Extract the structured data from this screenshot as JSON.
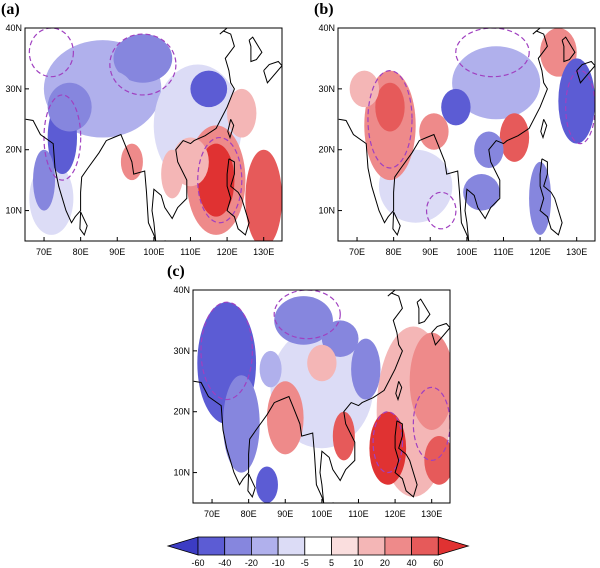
{
  "panels": [
    {
      "label": "(a)",
      "lat_labels": [
        "40N",
        "30N",
        "20N",
        "10N"
      ],
      "lon_labels": [
        "70E",
        "80E",
        "90E",
        "100E",
        "110E",
        "120E",
        "130E"
      ]
    },
    {
      "label": "(b)",
      "lat_labels": [
        "40N",
        "30N",
        "20N",
        "10N"
      ],
      "lon_labels": [
        "70E",
        "80E",
        "90E",
        "100E",
        "110E",
        "120E",
        "130E"
      ]
    },
    {
      "label": "(c)",
      "lat_labels": [
        "40N",
        "30N",
        "20N",
        "10N"
      ],
      "lon_labels": [
        "70E",
        "80E",
        "90E",
        "100E",
        "110E",
        "120E",
        "130E"
      ]
    }
  ],
  "colorbar": {
    "labels": [
      "-60",
      "-40",
      "-20",
      "-10",
      "-5",
      "5",
      "10",
      "20",
      "40",
      "60"
    ],
    "colors": [
      "#3c3cc4",
      "#5c5cd4",
      "#8686de",
      "#b0b0ec",
      "#dcdcf6",
      "#ffffff",
      "#fadede",
      "#f4b6b6",
      "#ee8a8a",
      "#e65a5a",
      "#e03232"
    ]
  }
}
